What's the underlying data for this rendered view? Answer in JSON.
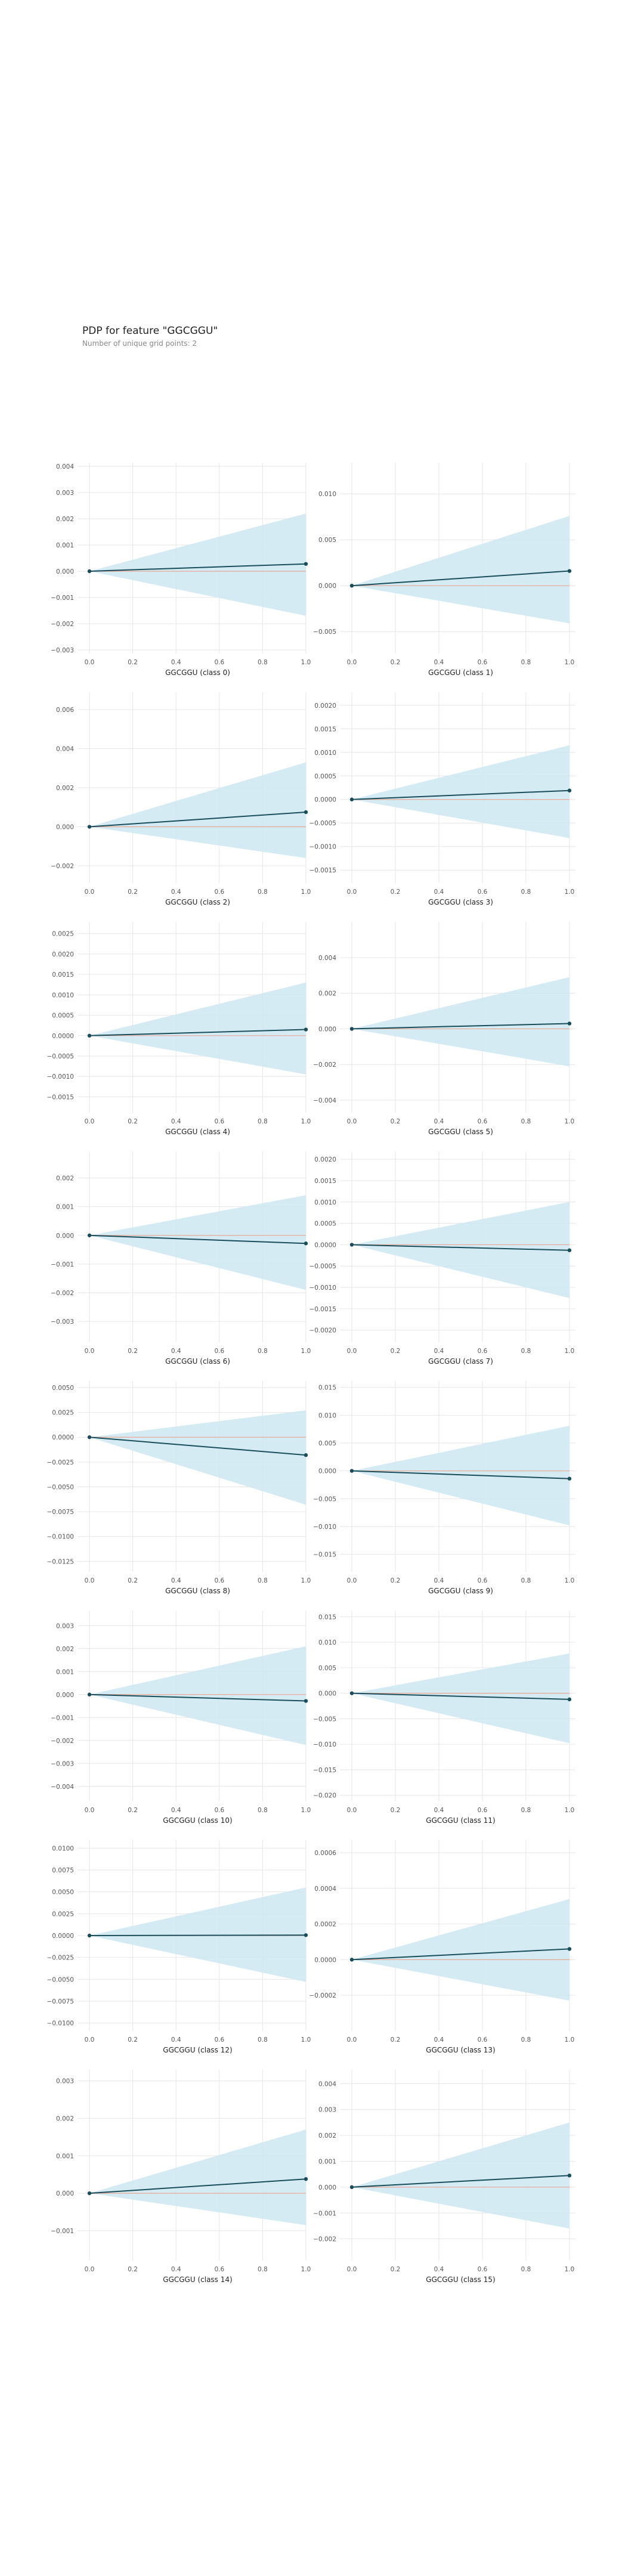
{
  "title": "PDP for feature \"GGCGGU\"",
  "subtitle": "Number of unique grid points: 2",
  "colors": {
    "band": "#cce7f1",
    "line": "#1a4d5a",
    "zero": "#e8a898",
    "grid": "#e6e6e6",
    "tick": "#555555"
  },
  "chart_data": [
    {
      "type": "line",
      "xlabel": "GGCGGU (class 0)",
      "x": [
        0,
        1
      ],
      "y": [
        0,
        0.00028
      ],
      "band_lower": [
        0,
        -0.0017
      ],
      "band_upper": [
        0,
        0.0022
      ],
      "ylim": [
        -0.003,
        0.004
      ],
      "yticks": [
        -0.003,
        -0.002,
        -0.001,
        0,
        0.001,
        0.002,
        0.003,
        0.004
      ],
      "yticklabels": [
        "−0.003",
        "−0.002",
        "−0.001",
        "0.000",
        "0.001",
        "0.002",
        "0.003",
        "0.004"
      ],
      "xticks": [
        0,
        0.2,
        0.4,
        0.6,
        0.8,
        1.0
      ],
      "xticklabels": [
        "0.0",
        "0.2",
        "0.4",
        "0.6",
        "0.8",
        "1.0"
      ]
    },
    {
      "type": "line",
      "xlabel": "GGCGGU (class 1)",
      "x": [
        0,
        1
      ],
      "y": [
        0,
        0.0016
      ],
      "band_lower": [
        0,
        -0.0041
      ],
      "band_upper": [
        0,
        0.0076
      ],
      "ylim": [
        -0.007,
        0.013
      ],
      "yticks": [
        -0.005,
        0,
        0.005,
        0.01
      ],
      "yticklabels": [
        "−0.005",
        "0.000",
        "0.005",
        "0.010"
      ],
      "xticks": [
        0,
        0.2,
        0.4,
        0.6,
        0.8,
        1.0
      ],
      "xticklabels": [
        "0.0",
        "0.2",
        "0.4",
        "0.6",
        "0.8",
        "1.0"
      ]
    },
    {
      "type": "line",
      "xlabel": "GGCGGU (class 2)",
      "x": [
        0,
        1
      ],
      "y": [
        0,
        0.00075
      ],
      "band_lower": [
        0,
        -0.0016
      ],
      "band_upper": [
        0,
        0.0033
      ],
      "ylim": [
        -0.0027,
        0.0067
      ],
      "yticks": [
        -0.002,
        0,
        0.002,
        0.004,
        0.006
      ],
      "yticklabels": [
        "−0.002",
        "0.000",
        "0.002",
        "0.004",
        "0.006"
      ],
      "xticks": [
        0,
        0.2,
        0.4,
        0.6,
        0.8,
        1.0
      ],
      "xticklabels": [
        "0.0",
        "0.2",
        "0.4",
        "0.6",
        "0.8",
        "1.0"
      ]
    },
    {
      "type": "line",
      "xlabel": "GGCGGU (class 3)",
      "x": [
        0,
        1
      ],
      "y": [
        0,
        0.00019
      ],
      "band_lower": [
        0,
        -0.00082
      ],
      "band_upper": [
        0,
        0.00115
      ],
      "ylim": [
        -0.0017,
        0.0022
      ],
      "yticks": [
        -0.0015,
        -0.001,
        -0.0005,
        0,
        0.0005,
        0.001,
        0.0015,
        0.002
      ],
      "yticklabels": [
        "−0.0015",
        "−0.0010",
        "−0.0005",
        "0.0000",
        "0.0005",
        "0.0010",
        "0.0015",
        "0.0020"
      ],
      "xticks": [
        0,
        0.2,
        0.4,
        0.6,
        0.8,
        1.0
      ],
      "xticklabels": [
        "0.0",
        "0.2",
        "0.4",
        "0.6",
        "0.8",
        "1.0"
      ]
    },
    {
      "type": "line",
      "xlabel": "GGCGGU (class 4)",
      "x": [
        0,
        1
      ],
      "y": [
        0,
        0.00015
      ],
      "band_lower": [
        0,
        -0.00095
      ],
      "band_upper": [
        0,
        0.0013
      ],
      "ylim": [
        -0.0018,
        0.0027
      ],
      "yticks": [
        -0.0015,
        -0.001,
        -0.0005,
        0,
        0.0005,
        0.001,
        0.0015,
        0.002,
        0.0025
      ],
      "yticklabels": [
        "−0.0015",
        "−0.0010",
        "−0.0005",
        "0.0000",
        "0.0005",
        "0.0010",
        "0.0015",
        "0.0020",
        "0.0025"
      ],
      "xticks": [
        0,
        0.2,
        0.4,
        0.6,
        0.8,
        1.0
      ],
      "xticklabels": [
        "0.0",
        "0.2",
        "0.4",
        "0.6",
        "0.8",
        "1.0"
      ]
    },
    {
      "type": "line",
      "xlabel": "GGCGGU (class 5)",
      "x": [
        0,
        1
      ],
      "y": [
        0,
        0.0003
      ],
      "band_lower": [
        0,
        -0.0021
      ],
      "band_upper": [
        0,
        0.0029
      ],
      "ylim": [
        -0.0045,
        0.0058
      ],
      "yticks": [
        -0.004,
        -0.002,
        0,
        0.002,
        0.004
      ],
      "yticklabels": [
        "−0.004",
        "−0.002",
        "0.000",
        "0.002",
        "0.004"
      ],
      "xticks": [
        0,
        0.2,
        0.4,
        0.6,
        0.8,
        1.0
      ],
      "xticklabels": [
        "0.0",
        "0.2",
        "0.4",
        "0.6",
        "0.8",
        "1.0"
      ]
    },
    {
      "type": "line",
      "xlabel": "GGCGGU (class 6)",
      "x": [
        0,
        1
      ],
      "y": [
        0,
        -0.00028
      ],
      "band_lower": [
        0,
        -0.0019
      ],
      "band_upper": [
        0,
        0.0014
      ],
      "ylim": [
        -0.0036,
        0.0028
      ],
      "yticks": [
        -0.003,
        -0.002,
        -0.001,
        0,
        0.001,
        0.002
      ],
      "yticklabels": [
        "−0.003",
        "−0.002",
        "−0.001",
        "0.000",
        "0.001",
        "0.002"
      ],
      "xticks": [
        0,
        0.2,
        0.4,
        0.6,
        0.8,
        1.0
      ],
      "xticklabels": [
        "0.0",
        "0.2",
        "0.4",
        "0.6",
        "0.8",
        "1.0"
      ]
    },
    {
      "type": "line",
      "xlabel": "GGCGGU (class 7)",
      "x": [
        0,
        1
      ],
      "y": [
        0,
        -0.00013
      ],
      "band_lower": [
        0,
        -0.00125
      ],
      "band_upper": [
        0,
        0.001
      ],
      "ylim": [
        -0.0022,
        0.0021
      ],
      "yticks": [
        -0.002,
        -0.0015,
        -0.001,
        -0.0005,
        0,
        0.0005,
        0.001,
        0.0015,
        0.002
      ],
      "yticklabels": [
        "−0.0020",
        "−0.0015",
        "−0.0010",
        "−0.0005",
        "0.0000",
        "0.0005",
        "0.0010",
        "0.0015",
        "0.0020"
      ],
      "xticks": [
        0,
        0.2,
        0.4,
        0.6,
        0.8,
        1.0
      ],
      "xticklabels": [
        "0.0",
        "0.2",
        "0.4",
        "0.6",
        "0.8",
        "1.0"
      ]
    },
    {
      "type": "line",
      "xlabel": "GGCGGU (class 8)",
      "x": [
        0,
        1
      ],
      "y": [
        0,
        -0.0018
      ],
      "band_lower": [
        0,
        -0.0068
      ],
      "band_upper": [
        0,
        0.0027
      ],
      "ylim": [
        -0.0132,
        0.0053
      ],
      "yticks": [
        -0.0125,
        -0.01,
        -0.0075,
        -0.005,
        -0.0025,
        0,
        0.0025,
        0.005
      ],
      "yticklabels": [
        "−0.0125",
        "−0.0100",
        "−0.0075",
        "−0.0050",
        "−0.0025",
        "0.0000",
        "0.0025",
        "0.0050"
      ],
      "xticks": [
        0,
        0.2,
        0.4,
        0.6,
        0.8,
        1.0
      ],
      "xticklabels": [
        "0.0",
        "0.2",
        "0.4",
        "0.6",
        "0.8",
        "1.0"
      ]
    },
    {
      "type": "line",
      "xlabel": "GGCGGU (class 9)",
      "x": [
        0,
        1
      ],
      "y": [
        0,
        -0.0014
      ],
      "band_lower": [
        0,
        -0.0098
      ],
      "band_upper": [
        0,
        0.0081
      ],
      "ylim": [
        -0.0175,
        0.0155
      ],
      "yticks": [
        -0.015,
        -0.01,
        -0.005,
        0,
        0.005,
        0.01,
        0.015
      ],
      "yticklabels": [
        "−0.015",
        "−0.010",
        "−0.005",
        "0.000",
        "0.005",
        "0.010",
        "0.015"
      ],
      "xticks": [
        0,
        0.2,
        0.4,
        0.6,
        0.8,
        1.0
      ],
      "xticklabels": [
        "0.0",
        "0.2",
        "0.4",
        "0.6",
        "0.8",
        "1.0"
      ]
    },
    {
      "type": "line",
      "xlabel": "GGCGGU (class 10)",
      "x": [
        0,
        1
      ],
      "y": [
        0,
        -0.00028
      ],
      "band_lower": [
        0,
        -0.0022
      ],
      "band_upper": [
        0,
        0.0021
      ],
      "ylim": [
        -0.0045,
        0.0035
      ],
      "yticks": [
        -0.004,
        -0.003,
        -0.002,
        -0.001,
        0,
        0.001,
        0.002,
        0.003
      ],
      "yticklabels": [
        "−0.004",
        "−0.003",
        "−0.002",
        "−0.001",
        "0.000",
        "0.001",
        "0.002",
        "0.003"
      ],
      "xticks": [
        0,
        0.2,
        0.4,
        0.6,
        0.8,
        1.0
      ],
      "xticklabels": [
        "0.0",
        "0.2",
        "0.4",
        "0.6",
        "0.8",
        "1.0"
      ]
    },
    {
      "type": "line",
      "xlabel": "GGCGGU (class 11)",
      "x": [
        0,
        1
      ],
      "y": [
        0,
        -0.0012
      ],
      "band_lower": [
        0,
        -0.0098
      ],
      "band_upper": [
        0,
        0.0078
      ],
      "ylim": [
        -0.0205,
        0.0155
      ],
      "yticks": [
        -0.02,
        -0.015,
        -0.01,
        -0.005,
        0,
        0.005,
        0.01,
        0.015
      ],
      "yticklabels": [
        "−0.020",
        "−0.015",
        "−0.010",
        "−0.005",
        "0.000",
        "0.005",
        "0.010",
        "0.015"
      ],
      "xticks": [
        0,
        0.2,
        0.4,
        0.6,
        0.8,
        1.0
      ],
      "xticklabels": [
        "0.0",
        "0.2",
        "0.4",
        "0.6",
        "0.8",
        "1.0"
      ]
    },
    {
      "type": "line",
      "xlabel": "GGCGGU (class 12)",
      "x": [
        0,
        1
      ],
      "y": [
        0,
        5e-05
      ],
      "band_lower": [
        0,
        -0.0053
      ],
      "band_upper": [
        0,
        0.0055
      ],
      "ylim": [
        -0.0105,
        0.0105
      ],
      "yticks": [
        -0.01,
        -0.0075,
        -0.005,
        -0.0025,
        0,
        0.0025,
        0.005,
        0.0075,
        0.01
      ],
      "yticklabels": [
        "−0.0100",
        "−0.0075",
        "−0.0050",
        "−0.0025",
        "0.0000",
        "0.0025",
        "0.0050",
        "0.0075",
        "0.0100"
      ],
      "xticks": [
        0,
        0.2,
        0.4,
        0.6,
        0.8,
        1.0
      ],
      "xticklabels": [
        "0.0",
        "0.2",
        "0.4",
        "0.6",
        "0.8",
        "1.0"
      ]
    },
    {
      "type": "line",
      "xlabel": "GGCGGU (class 13)",
      "x": [
        0,
        1
      ],
      "y": [
        0,
        6e-05
      ],
      "band_lower": [
        0,
        -0.00023
      ],
      "band_upper": [
        0,
        0.00034
      ],
      "ylim": [
        -0.00038,
        0.00065
      ],
      "yticks": [
        -0.0002,
        0,
        0.0002,
        0.0004,
        0.0006
      ],
      "yticklabels": [
        "−0.0002",
        "0.0000",
        "0.0002",
        "0.0004",
        "0.0006"
      ],
      "xticks": [
        0,
        0.2,
        0.4,
        0.6,
        0.8,
        1.0
      ],
      "xticklabels": [
        "0.0",
        "0.2",
        "0.4",
        "0.6",
        "0.8",
        "1.0"
      ]
    },
    {
      "type": "line",
      "xlabel": "GGCGGU (class 14)",
      "x": [
        0,
        1
      ],
      "y": [
        0,
        0.00038
      ],
      "band_lower": [
        0,
        -0.00085
      ],
      "band_upper": [
        0,
        0.0017
      ],
      "ylim": [
        -0.0017,
        0.0032
      ],
      "yticks": [
        -0.001,
        0,
        0.001,
        0.002,
        0.003
      ],
      "yticklabels": [
        "−0.001",
        "0.000",
        "0.001",
        "0.002",
        "0.003"
      ],
      "xticks": [
        0,
        0.2,
        0.4,
        0.6,
        0.8,
        1.0
      ],
      "xticklabels": [
        "0.0",
        "0.2",
        "0.4",
        "0.6",
        "0.8",
        "1.0"
      ]
    },
    {
      "type": "line",
      "xlabel": "GGCGGU (class 15)",
      "x": [
        0,
        1
      ],
      "y": [
        0,
        0.00045
      ],
      "band_lower": [
        0,
        -0.0016
      ],
      "band_upper": [
        0,
        0.0025
      ],
      "ylim": [
        -0.0027,
        0.0044
      ],
      "yticks": [
        -0.002,
        -0.001,
        0,
        0.001,
        0.002,
        0.003,
        0.004
      ],
      "yticklabels": [
        "−0.002",
        "−0.001",
        "0.000",
        "0.001",
        "0.002",
        "0.003",
        "0.004"
      ],
      "xticks": [
        0,
        0.2,
        0.4,
        0.6,
        0.8,
        1.0
      ],
      "xticklabels": [
        "0.0",
        "0.2",
        "0.4",
        "0.6",
        "0.8",
        "1.0"
      ]
    }
  ]
}
